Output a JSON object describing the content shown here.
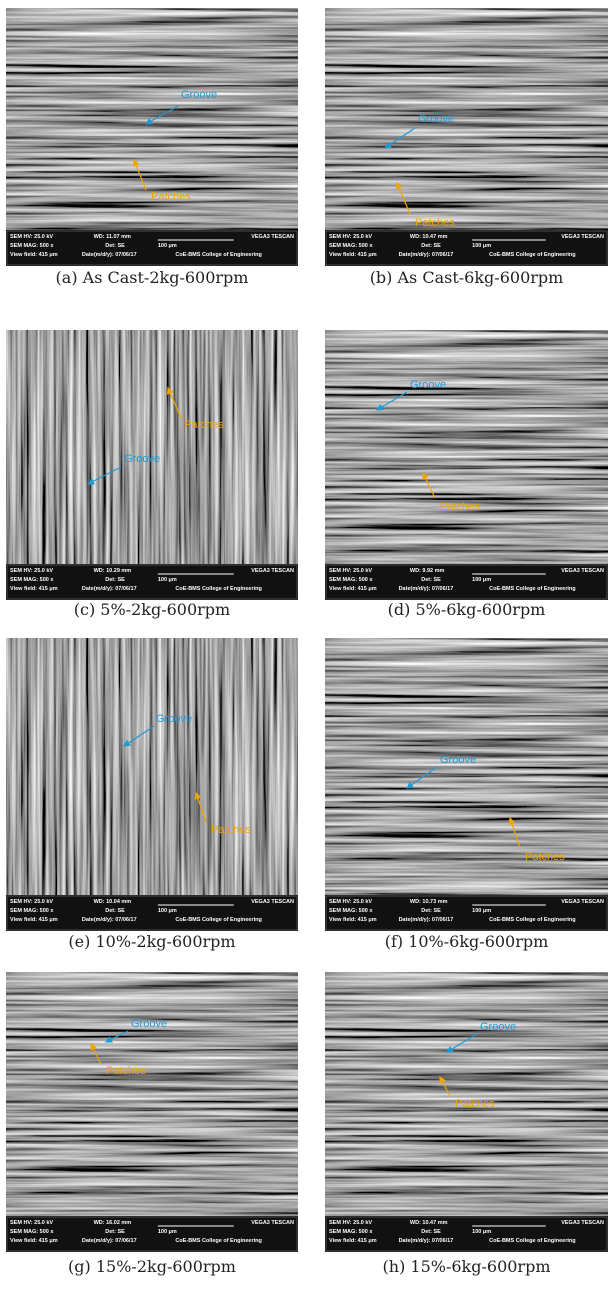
{
  "info_bar": {
    "hv": "SEM HV: 25.0 kV",
    "mag": "SEM MAG: 500 x",
    "view_field": "View field: 415 μm",
    "det": "Det: SE",
    "scale": "100 μm",
    "date": "Date(m/d/y): 07/06/17",
    "vendor": "VEGA3 TESCAN",
    "institution": "CoE-BMS College of Engineering"
  },
  "panels": [
    {
      "wd": "WD: 11.07 mm",
      "groove": "Groove",
      "patches": "Patches",
      "caption": "(a) As Cast-2kg-600rpm"
    },
    {
      "wd": "WD: 10.47 mm",
      "groove": "Groove",
      "patches": "Patches",
      "caption": "(b) As Cast-6kg-600rpm"
    },
    {
      "wd": "WD: 10.29 mm",
      "groove": "Groove",
      "patches": "Patches",
      "caption": "(c) 5%-2kg-600rpm"
    },
    {
      "wd": "WD: 9.92 mm",
      "groove": "Groove",
      "patches": "Patches",
      "caption": "(d) 5%-6kg-600rpm"
    },
    {
      "wd": "WD: 10.04 mm",
      "groove": "Groove",
      "patches": "Patches",
      "caption": "(e) 10%-2kg-600rpm"
    },
    {
      "wd": "WD: 10.73 mm",
      "groove": "Groove",
      "patches": "Patches",
      "caption": "(f) 10%-6kg-600rpm"
    },
    {
      "wd": "WD: 16.02 mm",
      "groove": "Groove",
      "patches": "Patches",
      "caption": "(g) 15%-2kg-600rpm"
    },
    {
      "wd": "WD: 10.47 mm",
      "groove": "Groove",
      "patches": "Patches",
      "caption": "(h) 15%-6kg-600rpm"
    }
  ]
}
